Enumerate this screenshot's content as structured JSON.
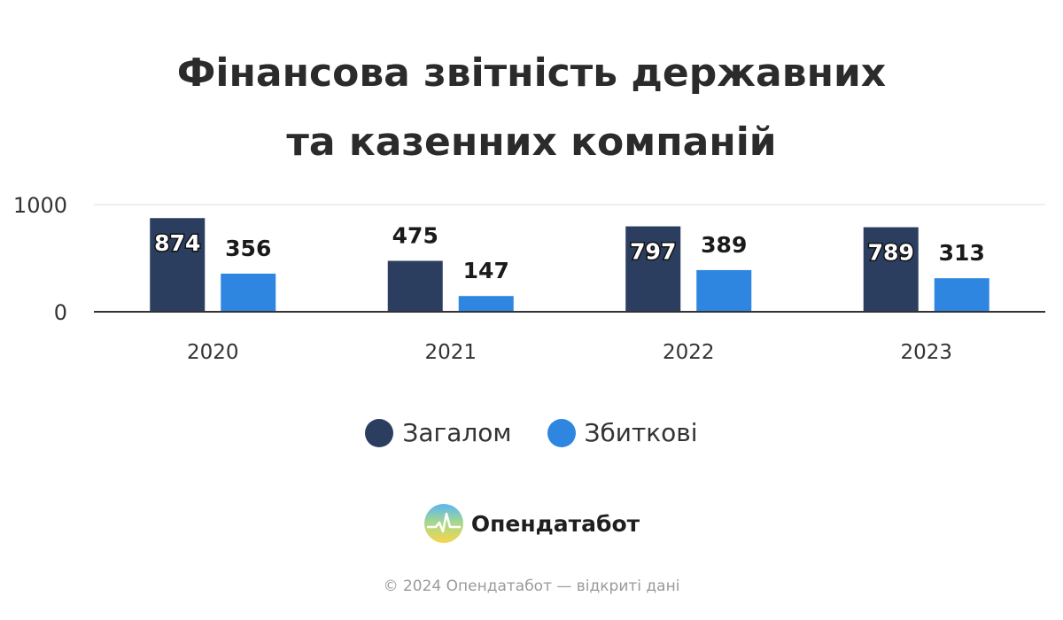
{
  "title_line1": "Фінансова звітність державних",
  "title_line2": "та казенних компаній",
  "chart_data": {
    "type": "bar",
    "categories": [
      "2020",
      "2021",
      "2022",
      "2023"
    ],
    "series": [
      {
        "name": "Загалом",
        "values": [
          874,
          475,
          797,
          789
        ],
        "color": "#2c3e60"
      },
      {
        "name": "Збиткові",
        "values": [
          356,
          147,
          389,
          313
        ],
        "color": "#2f86e0"
      }
    ],
    "yticks": [
      "1000",
      "0"
    ],
    "ylim": [
      0,
      1000
    ],
    "grid": true,
    "legend_position": "bottom"
  },
  "legend": {
    "total_label": "Загалом",
    "loss_label": "Збиткові"
  },
  "brand": {
    "name": "Опендатабот",
    "icon": "opendatabot-logo-icon"
  },
  "footer_text": "© 2024 Опендатабот — відкриті дані"
}
